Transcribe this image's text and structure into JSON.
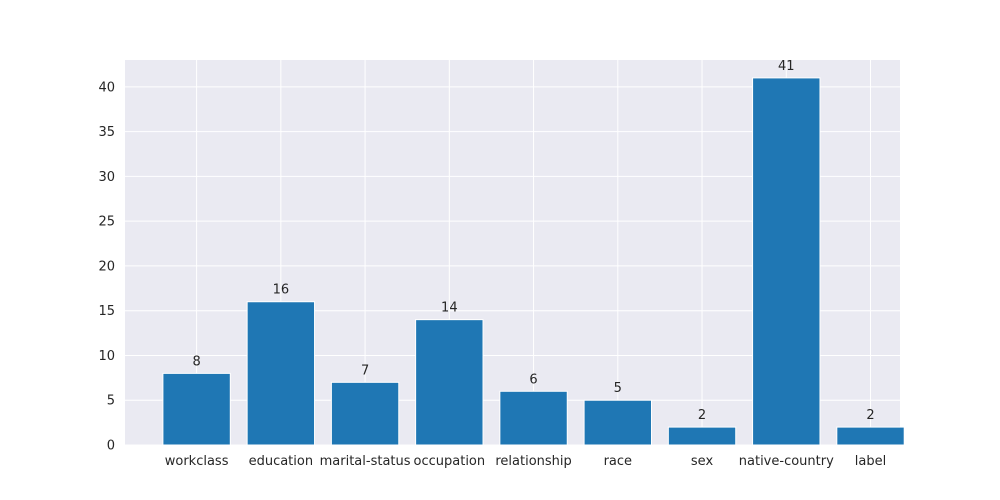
{
  "chart_data": {
    "type": "bar",
    "title": "",
    "xlabel": "",
    "ylabel": "",
    "categories": [
      "workclass",
      "education",
      "marital-status",
      "occupation",
      "relationship",
      "race",
      "sex",
      "native-country",
      "label"
    ],
    "values": [
      8,
      16,
      7,
      14,
      6,
      5,
      2,
      41,
      2
    ],
    "data_labels": [
      "8",
      "16",
      "7",
      "14",
      "6",
      "5",
      "2",
      "41",
      "2"
    ],
    "ylim": [
      0,
      43
    ],
    "yticks": [
      0,
      5,
      10,
      15,
      20,
      25,
      30,
      35,
      40
    ],
    "ytick_labels": [
      "0",
      "5",
      "10",
      "15",
      "20",
      "25",
      "30",
      "35",
      "40"
    ],
    "grid": true,
    "legend": "none",
    "colors": {
      "bar": "#1f77b4",
      "plot_background": "#eaeaf2",
      "grid": "#ffffff",
      "text": "#262626"
    }
  }
}
